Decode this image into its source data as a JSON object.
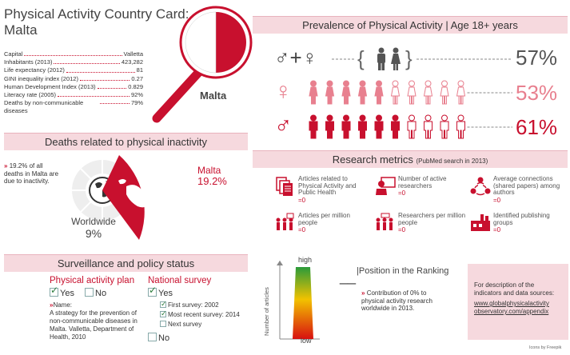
{
  "card": {
    "title_line1": "Physical Activity Country Card:",
    "title_line2": "Malta",
    "country_label": "Malta"
  },
  "facts": [
    {
      "label": "Capital",
      "value": "Valletta"
    },
    {
      "label": "Inhabitants (2013)",
      "value": "423,282"
    },
    {
      "label": "Life expectancy (2012)",
      "value": "81"
    },
    {
      "label": "GINI inequality index (2012)",
      "value": "0.27"
    },
    {
      "label": "Human Development Index (2013)",
      "value": "0.829"
    },
    {
      "label": "Literacy rate (2005)",
      "value": "92%"
    },
    {
      "label": "Deaths by non-communicable diseases",
      "value": "79%"
    }
  ],
  "prevalence": {
    "heading_main": "Prevalence of Physical Activity",
    "heading_sep": " | ",
    "heading_age": "Age 18+ years",
    "both_pct": "57%",
    "female_pct": "53%",
    "male_pct": "61%",
    "female_filled": 5,
    "female_total": 10,
    "male_filled": 6,
    "male_total": 10,
    "colors": {
      "dark": "#c8102e",
      "light": "#e8808f",
      "gray": "#555555"
    }
  },
  "deaths": {
    "heading": "Deaths related to physical inactivity",
    "note_marker": "»",
    "note": "19.2% of all deaths in Malta are due to inactivity.",
    "country_label": "Malta",
    "country_pct": "19.2%",
    "world_label": "Worldwide",
    "world_pct": "9%"
  },
  "research": {
    "heading": "Research metrics",
    "heading_sub": "(PubMed search in 2013)",
    "metrics": [
      {
        "icon": "articles-icon",
        "label": "Articles related to Physical Activity and Public Health",
        "value": "=0"
      },
      {
        "icon": "researcher-icon",
        "label": "Number of active researchers",
        "value": "=0"
      },
      {
        "icon": "network-icon",
        "label": "Average connections (shared papers) among authors",
        "value": "=0"
      },
      {
        "icon": "people-articles-icon",
        "label": "Articles per million people",
        "value": "=0"
      },
      {
        "icon": "people-researchers-icon",
        "label": "Researchers per million people",
        "value": "=0"
      },
      {
        "icon": "factory-icon",
        "label": "Identified publishing groups",
        "value": "=0"
      }
    ],
    "ranking_title": "Position in the Ranking",
    "ranking_sep": "|",
    "ranking_position": "__",
    "axis_label": "Number of articles",
    "high_label": "high",
    "low_label": "low",
    "contribution_marker": "»",
    "contribution": "Contribution of 0% to physical activity research worldwide in 2013.",
    "info_text": "For description of the indicators and data sources:",
    "info_link": "www.globalphysicalactivity observatory.com/appendix",
    "credit": "Icons by Freepik"
  },
  "surveillance": {
    "heading": "Surveillance and  policy status",
    "plan_title": "Physical activity plan",
    "plan_yes": "Yes",
    "plan_no": "No",
    "name_label": "Name:",
    "plan_name": "A strategy for the prevention of non-communicable diseases in Malta. Valletta, Department of Health, 2010",
    "survey_title": "National survey",
    "survey_yes": "Yes",
    "first_survey": "First survey: 2002",
    "recent_survey": "Most recent survey: 2014",
    "next_survey": "Next survey",
    "survey_no": "No"
  }
}
